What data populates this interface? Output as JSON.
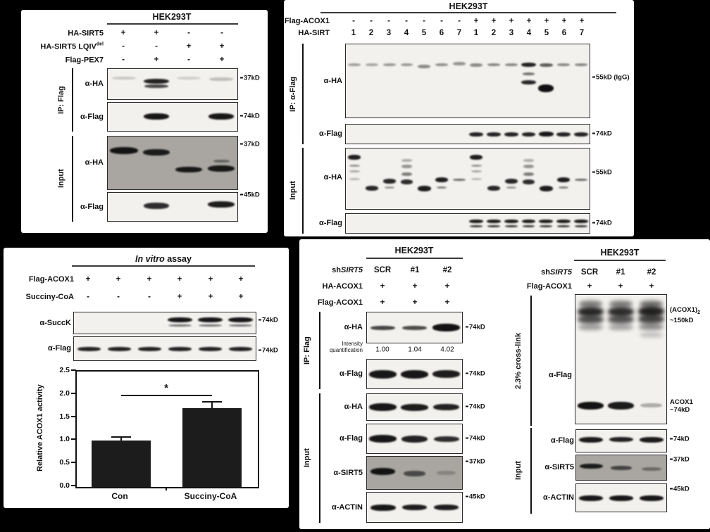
{
  "colors": {
    "background": "#000000",
    "panel": "#ffffff",
    "blot_bg": "#f3f1ee",
    "blot_gray_bg": "#a9a6a2",
    "band": "#0c0c0c",
    "bar": "#1c1c1c",
    "text": "#111111"
  },
  "panel_a": {
    "title": "HEK293T",
    "rows": [
      {
        "label": "HA-SIRT5",
        "sup": "",
        "values": [
          "+",
          "+",
          "-",
          "-"
        ]
      },
      {
        "label": "HA-SIRT5 LQIV",
        "sup": "del",
        "values": [
          "-",
          "-",
          "+",
          "+"
        ]
      },
      {
        "label": "Flag-PEX7",
        "sup": "",
        "values": [
          "-",
          "+",
          "-",
          "+"
        ]
      }
    ],
    "ip_label": "IP: Flag",
    "input_label": "Input",
    "blots": [
      {
        "antibody": "α-HA",
        "marker": "37kD"
      },
      {
        "antibody": "α-Flag",
        "marker": "74kD"
      },
      {
        "antibody": "α-HA",
        "marker": "37kD"
      },
      {
        "antibody": "α-Flag",
        "marker": "45kD"
      }
    ]
  },
  "panel_b": {
    "title": "HEK293T",
    "rows": [
      {
        "label": "Flag-ACOX1",
        "values": [
          "-",
          "-",
          "-",
          "-",
          "-",
          "-",
          "-",
          "+",
          "+",
          "+",
          "+",
          "+",
          "+",
          "+"
        ]
      },
      {
        "label": "HA-SIRT",
        "values": [
          "1",
          "2",
          "3",
          "4",
          "5",
          "6",
          "7",
          "1",
          "2",
          "3",
          "4",
          "5",
          "6",
          "7"
        ]
      }
    ],
    "ip_label": "IP: α-Flag",
    "input_label": "Input",
    "blots": [
      {
        "antibody": "α-HA",
        "marker": "55kD (IgG)"
      },
      {
        "antibody": "α-Flag",
        "marker": "74kD"
      },
      {
        "antibody": "α-HA",
        "marker": "55kD"
      },
      {
        "antibody": "α-Flag",
        "marker": "74kD"
      }
    ]
  },
  "panel_c": {
    "title_italic": "In vitro",
    "title_rest": " assay",
    "rows": [
      {
        "label": "Flag-ACOX1",
        "values": [
          "+",
          "+",
          "+",
          "+",
          "+",
          "+"
        ]
      },
      {
        "label": "Succiny-CoA",
        "values": [
          "-",
          "-",
          "-",
          "+",
          "+",
          "+"
        ]
      }
    ],
    "blots": [
      {
        "antibody": "α-SuccK",
        "marker": "74kD"
      },
      {
        "antibody": "α-Flag",
        "marker": "74kD"
      }
    ]
  },
  "chart_data": {
    "type": "bar",
    "categories": [
      "Con",
      "Succiny-CoA"
    ],
    "values": [
      1.0,
      1.7
    ],
    "errors": [
      0.1,
      0.16
    ],
    "title": "",
    "xlabel": "",
    "ylabel": "Relative ACOX1 activity",
    "ylim": [
      0,
      2.5
    ],
    "ytick_labels": [
      "0.0",
      "0.5",
      "1.0",
      "1.5",
      "2.0",
      "2.5"
    ],
    "significance": {
      "label": "*",
      "level": 2.0,
      "between": [
        "Con",
        "Succiny-CoA"
      ]
    },
    "bar_color": "#1c1c1c",
    "grid": false,
    "legend": false
  },
  "panel_d": {
    "title": "HEK293T",
    "sh_prefix": "sh",
    "sh_italic": "SIRT5",
    "sh_values": [
      "SCR",
      "#1",
      "#2"
    ],
    "rows": [
      {
        "label": "HA-ACOX1",
        "values": [
          "+",
          "+",
          "+"
        ]
      },
      {
        "label": "Flag-ACOX1",
        "values": [
          "+",
          "+",
          "+"
        ]
      }
    ],
    "ip_label": "IP: Flag",
    "input_label": "Input",
    "intensity_label_1": "Intensity",
    "intensity_label_2": "quantification",
    "intensity_values": [
      "1.00",
      "1.04",
      "4.02"
    ],
    "blots": [
      {
        "antibody": "α-HA",
        "marker": "74kD"
      },
      {
        "antibody": "α-Flag",
        "marker": "74kD"
      },
      {
        "antibody": "α-HA",
        "marker": "74kD"
      },
      {
        "antibody": "α-Flag",
        "marker": "74kD"
      },
      {
        "antibody": "α-SIRT5",
        "marker": "37kD"
      },
      {
        "antibody": "α-ACTIN",
        "marker": "45kD"
      }
    ]
  },
  "panel_e": {
    "title": "HEK293T",
    "sh_prefix": "sh",
    "sh_italic": "SIRT5",
    "sh_values": [
      "SCR",
      "#1",
      "#2"
    ],
    "rows": [
      {
        "label": "Flag-ACOX1",
        "values": [
          "+",
          "+",
          "+"
        ]
      }
    ],
    "crosslink_label": "2.3% cross-link",
    "blot_antibody": "α-Flag",
    "dimer_label": "(ACOX1)",
    "dimer_sub": "2",
    "dimer_mass": "~150kD",
    "monomer_label": "ACOX1",
    "monomer_mass": "~74kD",
    "input_label": "Input",
    "input_blots": [
      {
        "antibody": "α-Flag",
        "marker": "74kD"
      },
      {
        "antibody": "α-SIRT5",
        "marker": "37kD"
      },
      {
        "antibody": "α-ACTIN",
        "marker": "45kD"
      }
    ]
  },
  "bands": {
    "a1": {
      "lanes": 4,
      "bands": [
        [
          0,
          0.3,
          0.75,
          4,
          0.18
        ],
        [
          1,
          0.4,
          0.8,
          7,
          0.9
        ],
        [
          1,
          0.56,
          0.75,
          5,
          0.75
        ],
        [
          2,
          0.3,
          0.75,
          4,
          0.15
        ],
        [
          3,
          0.33,
          0.75,
          5,
          0.22
        ]
      ]
    },
    "a2": {
      "lanes": 4,
      "bands": [
        [
          1,
          0.48,
          0.8,
          9,
          0.95
        ],
        [
          3,
          0.48,
          0.8,
          9,
          0.95
        ]
      ]
    },
    "a3": {
      "lanes": 4,
      "bands": [
        [
          0,
          0.26,
          0.88,
          10,
          0.95
        ],
        [
          1,
          0.3,
          0.82,
          9,
          0.9
        ],
        [
          2,
          0.62,
          0.82,
          8,
          0.92
        ],
        [
          3,
          0.6,
          0.82,
          9,
          0.92
        ],
        [
          3,
          0.47,
          0.5,
          4,
          0.45
        ]
      ]
    },
    "a4": {
      "lanes": 4,
      "bands": [
        [
          1,
          0.45,
          0.78,
          9,
          0.85
        ],
        [
          3,
          0.42,
          0.82,
          9,
          0.92
        ]
      ]
    },
    "b1": {
      "lanes": 14,
      "bands": [
        [
          0,
          0.28,
          0.72,
          4,
          0.35
        ],
        [
          1,
          0.28,
          0.72,
          4,
          0.32
        ],
        [
          2,
          0.28,
          0.72,
          4,
          0.38
        ],
        [
          3,
          0.28,
          0.72,
          4,
          0.38
        ],
        [
          4,
          0.3,
          0.72,
          5,
          0.45
        ],
        [
          5,
          0.28,
          0.72,
          4,
          0.42
        ],
        [
          6,
          0.26,
          0.72,
          5,
          0.4
        ],
        [
          7,
          0.28,
          0.72,
          5,
          0.45
        ],
        [
          8,
          0.28,
          0.72,
          4,
          0.45
        ],
        [
          9,
          0.28,
          0.72,
          4,
          0.45
        ],
        [
          10,
          0.28,
          0.85,
          6,
          0.9
        ],
        [
          10,
          0.4,
          0.7,
          4,
          0.55
        ],
        [
          10,
          0.52,
          0.85,
          6,
          0.88
        ],
        [
          11,
          0.28,
          0.78,
          5,
          0.65
        ],
        [
          11,
          0.6,
          0.9,
          11,
          0.98
        ],
        [
          12,
          0.28,
          0.72,
          4,
          0.45
        ],
        [
          13,
          0.28,
          0.72,
          4,
          0.45
        ]
      ]
    },
    "b2": {
      "lanes": 14,
      "bands": [
        [
          7,
          0.5,
          0.8,
          6,
          0.9
        ],
        [
          8,
          0.5,
          0.8,
          6,
          0.9
        ],
        [
          9,
          0.5,
          0.8,
          6,
          0.9
        ],
        [
          10,
          0.5,
          0.8,
          6,
          0.9
        ],
        [
          11,
          0.5,
          0.85,
          7,
          0.95
        ],
        [
          12,
          0.5,
          0.8,
          6,
          0.9
        ],
        [
          13,
          0.5,
          0.8,
          6,
          0.9
        ]
      ]
    },
    "b3": {
      "lanes": 14,
      "bands": [
        [
          0,
          0.15,
          0.72,
          7,
          0.92
        ],
        [
          0,
          0.28,
          0.6,
          3,
          0.4
        ],
        [
          0,
          0.38,
          0.6,
          3,
          0.32
        ],
        [
          0,
          0.5,
          0.6,
          3,
          0.25
        ],
        [
          1,
          0.66,
          0.72,
          7,
          0.88
        ],
        [
          2,
          0.54,
          0.72,
          7,
          0.88
        ],
        [
          2,
          0.64,
          0.55,
          3,
          0.4
        ],
        [
          3,
          0.55,
          0.72,
          7,
          0.85
        ],
        [
          3,
          0.42,
          0.62,
          5,
          0.5
        ],
        [
          3,
          0.3,
          0.6,
          5,
          0.4
        ],
        [
          3,
          0.2,
          0.58,
          4,
          0.3
        ],
        [
          4,
          0.66,
          0.78,
          8,
          0.92
        ],
        [
          5,
          0.52,
          0.75,
          7,
          0.92
        ],
        [
          5,
          0.64,
          0.6,
          3,
          0.5
        ],
        [
          6,
          0.52,
          0.72,
          3,
          0.6
        ],
        [
          7,
          0.15,
          0.72,
          7,
          0.92
        ],
        [
          7,
          0.28,
          0.6,
          3,
          0.4
        ],
        [
          7,
          0.38,
          0.6,
          3,
          0.32
        ],
        [
          7,
          0.5,
          0.6,
          3,
          0.25
        ],
        [
          8,
          0.66,
          0.72,
          7,
          0.88
        ],
        [
          9,
          0.54,
          0.72,
          7,
          0.88
        ],
        [
          9,
          0.64,
          0.55,
          3,
          0.4
        ],
        [
          10,
          0.55,
          0.72,
          7,
          0.85
        ],
        [
          10,
          0.42,
          0.62,
          5,
          0.5
        ],
        [
          10,
          0.3,
          0.6,
          5,
          0.4
        ],
        [
          10,
          0.2,
          0.58,
          4,
          0.3
        ],
        [
          11,
          0.66,
          0.78,
          8,
          0.92
        ],
        [
          12,
          0.52,
          0.75,
          7,
          0.92
        ],
        [
          12,
          0.64,
          0.6,
          3,
          0.5
        ],
        [
          13,
          0.52,
          0.72,
          3,
          0.6
        ]
      ]
    },
    "b4": {
      "lanes": 14,
      "bands": [
        [
          7,
          0.4,
          0.8,
          5,
          0.92
        ],
        [
          7,
          0.64,
          0.72,
          3,
          0.8
        ],
        [
          8,
          0.4,
          0.8,
          5,
          0.92
        ],
        [
          8,
          0.64,
          0.72,
          3,
          0.8
        ],
        [
          9,
          0.4,
          0.8,
          5,
          0.92
        ],
        [
          9,
          0.64,
          0.72,
          3,
          0.8
        ],
        [
          10,
          0.4,
          0.8,
          5,
          0.92
        ],
        [
          10,
          0.64,
          0.72,
          3,
          0.8
        ],
        [
          11,
          0.4,
          0.8,
          5,
          0.92
        ],
        [
          11,
          0.64,
          0.72,
          3,
          0.8
        ],
        [
          12,
          0.4,
          0.8,
          5,
          0.92
        ],
        [
          12,
          0.64,
          0.72,
          3,
          0.8
        ],
        [
          13,
          0.4,
          0.8,
          5,
          0.92
        ],
        [
          13,
          0.64,
          0.72,
          3,
          0.8
        ]
      ]
    },
    "c1": {
      "lanes": 6,
      "bands": [
        [
          3,
          0.36,
          0.8,
          7,
          0.95
        ],
        [
          3,
          0.6,
          0.75,
          3,
          0.55
        ],
        [
          4,
          0.36,
          0.8,
          7,
          0.95
        ],
        [
          4,
          0.6,
          0.75,
          3,
          0.55
        ],
        [
          5,
          0.36,
          0.8,
          7,
          0.95
        ],
        [
          5,
          0.6,
          0.75,
          3,
          0.55
        ]
      ]
    },
    "c2": {
      "lanes": 6,
      "bands": [
        [
          0,
          0.5,
          0.78,
          6,
          0.9
        ],
        [
          1,
          0.5,
          0.78,
          6,
          0.9
        ],
        [
          2,
          0.5,
          0.78,
          6,
          0.9
        ],
        [
          3,
          0.5,
          0.78,
          6,
          0.9
        ],
        [
          4,
          0.5,
          0.78,
          6,
          0.9
        ],
        [
          5,
          0.5,
          0.78,
          6,
          0.9
        ]
      ]
    },
    "d1": {
      "lanes": 3,
      "bands": [
        [
          0,
          0.5,
          0.78,
          6,
          0.75
        ],
        [
          1,
          0.5,
          0.78,
          6,
          0.72
        ],
        [
          2,
          0.5,
          0.88,
          11,
          0.97
        ]
      ]
    },
    "d2": {
      "lanes": 3,
      "bands": [
        [
          0,
          0.5,
          0.88,
          12,
          0.95
        ],
        [
          1,
          0.5,
          0.88,
          12,
          0.95
        ],
        [
          2,
          0.5,
          0.86,
          11,
          0.92
        ]
      ]
    },
    "d3": {
      "lanes": 3,
      "bands": [
        [
          0,
          0.5,
          0.86,
          11,
          0.95
        ],
        [
          1,
          0.5,
          0.86,
          10,
          0.93
        ],
        [
          2,
          0.5,
          0.84,
          9,
          0.9
        ]
      ]
    },
    "d4": {
      "lanes": 3,
      "bands": [
        [
          0,
          0.5,
          0.86,
          11,
          0.95
        ],
        [
          1,
          0.5,
          0.84,
          10,
          0.9
        ],
        [
          2,
          0.5,
          0.8,
          8,
          0.85
        ]
      ]
    },
    "d5": {
      "lanes": 3,
      "bands": [
        [
          0,
          0.45,
          0.78,
          10,
          0.95
        ],
        [
          1,
          0.52,
          0.68,
          8,
          0.6
        ],
        [
          2,
          0.5,
          0.6,
          6,
          0.22
        ]
      ]
    },
    "d6": {
      "lanes": 3,
      "bands": [
        [
          0,
          0.5,
          0.8,
          9,
          0.95
        ],
        [
          1,
          0.5,
          0.78,
          8,
          0.92
        ],
        [
          2,
          0.5,
          0.78,
          8,
          0.92
        ]
      ]
    },
    "e1": {
      "lanes": 3,
      "bands": [
        [
          0,
          0.07,
          0.75,
          10,
          0.5,
          3
        ],
        [
          0,
          0.13,
          0.85,
          14,
          0.88,
          3
        ],
        [
          0,
          0.19,
          0.85,
          12,
          0.7,
          3
        ],
        [
          0,
          0.25,
          0.8,
          8,
          0.38,
          3
        ],
        [
          1,
          0.07,
          0.75,
          10,
          0.5,
          3
        ],
        [
          1,
          0.13,
          0.85,
          14,
          0.85,
          3
        ],
        [
          1,
          0.19,
          0.85,
          12,
          0.68,
          3
        ],
        [
          1,
          0.25,
          0.8,
          8,
          0.35,
          3
        ],
        [
          2,
          0.07,
          0.78,
          10,
          0.55,
          3
        ],
        [
          2,
          0.13,
          0.88,
          15,
          0.9,
          3
        ],
        [
          2,
          0.19,
          0.88,
          13,
          0.75,
          3
        ],
        [
          2,
          0.25,
          0.82,
          9,
          0.45,
          3
        ],
        [
          2,
          0.31,
          0.75,
          6,
          0.25,
          3
        ],
        [
          0,
          0.86,
          0.85,
          11,
          0.96
        ],
        [
          1,
          0.86,
          0.85,
          11,
          0.93
        ],
        [
          2,
          0.86,
          0.7,
          6,
          0.3
        ]
      ]
    },
    "e2": {
      "lanes": 3,
      "bands": [
        [
          0,
          0.45,
          0.8,
          8,
          0.93
        ],
        [
          1,
          0.45,
          0.78,
          7,
          0.9
        ],
        [
          2,
          0.45,
          0.8,
          8,
          0.93
        ]
      ]
    },
    "e3": {
      "lanes": 3,
      "bands": [
        [
          0,
          0.45,
          0.76,
          7,
          0.9
        ],
        [
          1,
          0.5,
          0.7,
          6,
          0.65
        ],
        [
          2,
          0.55,
          0.66,
          5,
          0.4
        ]
      ]
    },
    "e4": {
      "lanes": 3,
      "bands": [
        [
          0,
          0.5,
          0.8,
          8,
          0.95
        ],
        [
          1,
          0.5,
          0.8,
          8,
          0.95
        ],
        [
          2,
          0.5,
          0.8,
          8,
          0.95
        ]
      ]
    }
  }
}
